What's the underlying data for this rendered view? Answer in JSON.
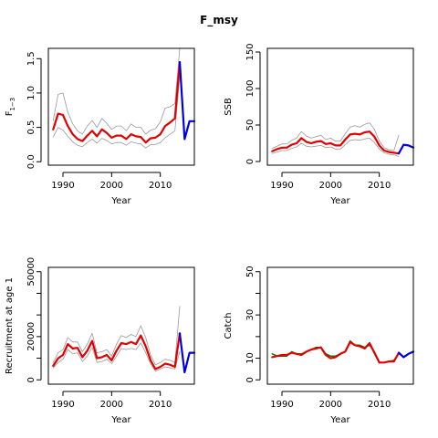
{
  "title": "F_msy",
  "chart_data": [
    {
      "type": "line",
      "ylabel": "F1-3",
      "xlabel": "Year",
      "xlim": [
        1987,
        2017
      ],
      "ylim": [
        -0.05,
        1.65
      ],
      "xticks": [
        1990,
        2000,
        2010
      ],
      "yticks": [
        0.0,
        0.5,
        1.0,
        1.5
      ],
      "ytick_labels": [
        "0.0",
        "0.5",
        "1.0",
        "1.5"
      ],
      "series": [
        {
          "role": "estimate",
          "color": "#e00000",
          "x": [
            1988,
            1989,
            1990,
            1991,
            1992,
            1993,
            1994,
            1995,
            1996,
            1997,
            1998,
            1999,
            2000,
            2001,
            2002,
            2003,
            2004,
            2005,
            2006,
            2007,
            2008,
            2009,
            2010,
            2011,
            2012,
            2013,
            2014
          ],
          "y": [
            0.47,
            0.7,
            0.68,
            0.52,
            0.4,
            0.33,
            0.3,
            0.38,
            0.45,
            0.37,
            0.47,
            0.42,
            0.35,
            0.38,
            0.38,
            0.33,
            0.4,
            0.37,
            0.36,
            0.28,
            0.34,
            0.35,
            0.4,
            0.52,
            0.57,
            0.63,
            1.45
          ]
        },
        {
          "role": "upper",
          "color": "#999999",
          "x": [
            1988,
            1989,
            1990,
            1991,
            1992,
            1993,
            1994,
            1995,
            1996,
            1997,
            1998,
            1999,
            2000,
            2001,
            2002,
            2003,
            2004,
            2005,
            2006,
            2007,
            2008,
            2009,
            2010,
            2011,
            2012,
            2013,
            2014
          ],
          "y": [
            0.6,
            0.98,
            1.0,
            0.72,
            0.55,
            0.45,
            0.4,
            0.52,
            0.6,
            0.5,
            0.63,
            0.56,
            0.47,
            0.52,
            0.52,
            0.45,
            0.55,
            0.5,
            0.5,
            0.4,
            0.46,
            0.48,
            0.58,
            0.78,
            0.8,
            0.85,
            1.65
          ]
        },
        {
          "role": "lower",
          "color": "#999999",
          "x": [
            1988,
            1989,
            1990,
            1991,
            1992,
            1993,
            1994,
            1995,
            1996,
            1997,
            1998,
            1999,
            2000,
            2001,
            2002,
            2003,
            2004,
            2005,
            2006,
            2007,
            2008,
            2009,
            2010,
            2011,
            2012,
            2013,
            2014
          ],
          "y": [
            0.36,
            0.5,
            0.46,
            0.37,
            0.29,
            0.24,
            0.22,
            0.28,
            0.33,
            0.27,
            0.34,
            0.31,
            0.26,
            0.28,
            0.28,
            0.24,
            0.29,
            0.27,
            0.26,
            0.2,
            0.25,
            0.25,
            0.28,
            0.35,
            0.4,
            0.45,
            1.25
          ]
        },
        {
          "role": "forecast",
          "color": "#0000e0",
          "x": [
            2014,
            2015,
            2016,
            2017
          ],
          "y": [
            1.45,
            0.33,
            0.59,
            0.59
          ]
        }
      ]
    },
    {
      "type": "line",
      "ylabel": "SSB",
      "xlabel": "Year",
      "xlim": [
        1987,
        2017
      ],
      "ylim": [
        -5,
        155
      ],
      "xticks": [
        1990,
        2000,
        2010
      ],
      "yticks": [
        0,
        50,
        100,
        150
      ],
      "ytick_labels": [
        "0",
        "50",
        "100",
        "150"
      ],
      "series": [
        {
          "role": "estimate",
          "color": "#e00000",
          "x": [
            1988,
            1989,
            1990,
            1991,
            1992,
            1993,
            1994,
            1995,
            1996,
            1997,
            1998,
            1999,
            2000,
            2001,
            2002,
            2003,
            2004,
            2005,
            2006,
            2007,
            2008,
            2009,
            2010,
            2011,
            2012,
            2013,
            2014
          ],
          "y": [
            14,
            17,
            19,
            19,
            23,
            25,
            32,
            27,
            25,
            27,
            28,
            24,
            25,
            22,
            22,
            30,
            37,
            38,
            37,
            40,
            41,
            34,
            22,
            15,
            13,
            12,
            11
          ]
        },
        {
          "role": "upper",
          "color": "#999999",
          "x": [
            1988,
            1989,
            1990,
            1991,
            1992,
            1993,
            1994,
            1995,
            1996,
            1997,
            1998,
            1999,
            2000,
            2001,
            2002,
            2003,
            2004,
            2005,
            2006,
            2007,
            2008,
            2009,
            2010,
            2011,
            2012,
            2013,
            2014
          ],
          "y": [
            18,
            21,
            24,
            24,
            29,
            32,
            41,
            35,
            32,
            34,
            36,
            30,
            32,
            28,
            28,
            38,
            47,
            49,
            47,
            51,
            53,
            44,
            28,
            19,
            16,
            15,
            36
          ]
        },
        {
          "role": "lower",
          "color": "#999999",
          "x": [
            1988,
            1989,
            1990,
            1991,
            1992,
            1993,
            1994,
            1995,
            1996,
            1997,
            1998,
            1999,
            2000,
            2001,
            2002,
            2003,
            2004,
            2005,
            2006,
            2007,
            2008,
            2009,
            2010,
            2011,
            2012,
            2013,
            2014
          ],
          "y": [
            11,
            13,
            15,
            15,
            18,
            20,
            25,
            21,
            20,
            21,
            22,
            19,
            20,
            17,
            17,
            23,
            29,
            30,
            29,
            31,
            32,
            26,
            17,
            12,
            10,
            9,
            7
          ]
        },
        {
          "role": "forecast",
          "color": "#0000e0",
          "x": [
            2014,
            2015,
            2016,
            2017
          ],
          "y": [
            11,
            23,
            22,
            19
          ]
        }
      ]
    },
    {
      "type": "line",
      "ylabel": "Recruitment at age 1",
      "xlabel": "Year",
      "xlim": [
        1987,
        2017
      ],
      "ylim": [
        -2000,
        52000
      ],
      "xticks": [
        1990,
        2000,
        2010
      ],
      "yticks": [
        0,
        10000,
        20000,
        30000,
        40000,
        50000
      ],
      "ytick_labels": [
        "0",
        "",
        "20000",
        "",
        "",
        "50000"
      ],
      "series": [
        {
          "role": "estimate",
          "color": "#e00000",
          "x": [
            1988,
            1989,
            1990,
            1991,
            1992,
            1993,
            1994,
            1995,
            1996,
            1997,
            1998,
            1999,
            2000,
            2001,
            2002,
            2003,
            2004,
            2005,
            2006,
            2007,
            2008,
            2009,
            2010,
            2011,
            2012,
            2013,
            2014
          ],
          "y": [
            6500,
            10000,
            11500,
            16500,
            14500,
            14800,
            10500,
            13500,
            18000,
            10000,
            10500,
            11500,
            9000,
            13500,
            17000,
            16500,
            17500,
            16500,
            20500,
            15500,
            9000,
            5000,
            6000,
            7500,
            7000,
            6000,
            21500
          ]
        },
        {
          "role": "upper",
          "color": "#999999",
          "x": [
            1988,
            1989,
            1990,
            1991,
            1992,
            1993,
            1994,
            1995,
            1996,
            1997,
            1998,
            1999,
            2000,
            2001,
            2002,
            2003,
            2004,
            2005,
            2006,
            2007,
            2008,
            2009,
            2010,
            2011,
            2012,
            2013,
            2014
          ],
          "y": [
            8000,
            12500,
            14000,
            19500,
            17500,
            17500,
            13000,
            16500,
            21500,
            12500,
            13000,
            14000,
            11000,
            16500,
            20500,
            19500,
            21000,
            20000,
            25000,
            19500,
            11500,
            7000,
            8000,
            9500,
            9000,
            8000,
            34000
          ]
        },
        {
          "role": "lower",
          "color": "#999999",
          "x": [
            1988,
            1989,
            1990,
            1991,
            1992,
            1993,
            1994,
            1995,
            1996,
            1997,
            1998,
            1999,
            2000,
            2001,
            2002,
            2003,
            2004,
            2005,
            2006,
            2007,
            2008,
            2009,
            2010,
            2011,
            2012,
            2013,
            2014
          ],
          "y": [
            5500,
            8000,
            9500,
            14000,
            12000,
            12500,
            8500,
            11000,
            15000,
            8000,
            8500,
            9500,
            7500,
            11000,
            14500,
            14000,
            14500,
            14000,
            17000,
            12500,
            7500,
            4000,
            5000,
            6000,
            5500,
            5000,
            13000
          ]
        },
        {
          "role": "forecast",
          "color": "#0000e0",
          "x": [
            2014,
            2015,
            2016,
            2017
          ],
          "y": [
            21500,
            3500,
            12500,
            12500
          ]
        }
      ]
    },
    {
      "type": "line",
      "ylabel": "Catch",
      "xlabel": "Year",
      "xlim": [
        1987,
        2017
      ],
      "ylim": [
        -2,
        52
      ],
      "xticks": [
        1990,
        2000,
        2010
      ],
      "yticks": [
        0,
        10,
        20,
        30,
        40,
        50
      ],
      "ytick_labels": [
        "0",
        "10",
        "",
        "30",
        "",
        "50"
      ],
      "series": [
        {
          "role": "observed",
          "color": "#008000",
          "x": [
            1988,
            1989,
            1990,
            1991,
            1992,
            1993,
            1994,
            1995,
            1996,
            1997,
            1998,
            1999,
            2000,
            2001,
            2002,
            2003,
            2004,
            2005,
            2006,
            2007,
            2008,
            2009,
            2010,
            2011,
            2012,
            2013,
            2014
          ],
          "y": [
            12,
            11,
            11,
            11,
            13,
            12,
            12,
            13,
            14,
            15,
            15,
            12,
            11,
            11,
            12,
            13,
            18,
            16,
            16,
            15,
            16,
            13,
            8,
            8,
            8.5,
            9,
            12
          ]
        },
        {
          "role": "estimate",
          "color": "#e00000",
          "x": [
            1988,
            1989,
            1990,
            1991,
            1992,
            1993,
            1994,
            1995,
            1996,
            1997,
            1998,
            1999,
            2000,
            2001,
            2002,
            2003,
            2004,
            2005,
            2006,
            2007,
            2008,
            2009,
            2010,
            2011,
            2012,
            2013,
            2014
          ],
          "y": [
            10.5,
            11,
            11.5,
            11.5,
            12.5,
            12,
            11.5,
            13,
            14,
            14.5,
            15,
            11.5,
            10,
            10.5,
            12,
            13,
            17.5,
            16,
            15.5,
            14.5,
            17,
            12.5,
            8,
            8,
            8.5,
            8.5,
            12.5
          ]
        },
        {
          "role": "forecast",
          "color": "#0000e0",
          "x": [
            2014,
            2015,
            2016,
            2017
          ],
          "y": [
            12.5,
            10.5,
            12,
            13
          ]
        }
      ]
    }
  ]
}
